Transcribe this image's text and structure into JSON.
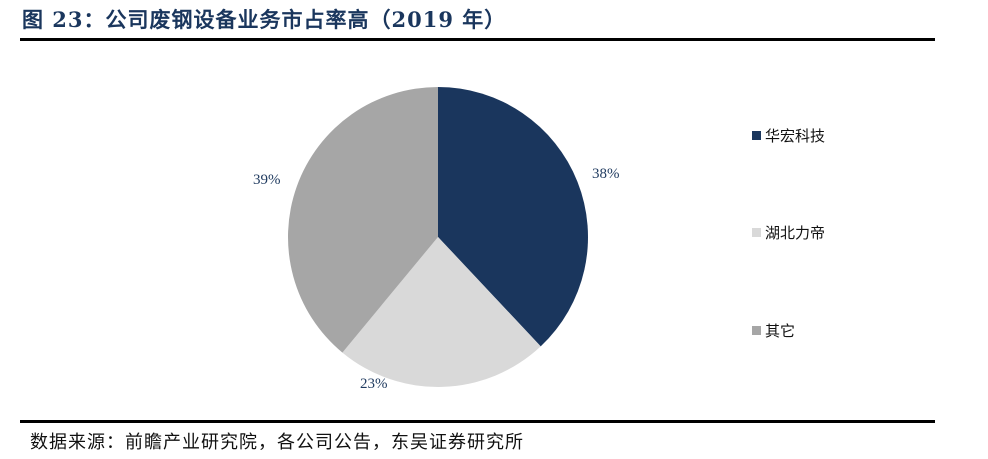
{
  "header": {
    "title": "图 23：公司废钢设备业务市占率高（2019 年）"
  },
  "footer": {
    "source": "数据来源：前瞻产业研究院，各公司公告，东吴证券研究所"
  },
  "legend": {
    "items": [
      {
        "label": "华宏科技",
        "color": "#1a365d"
      },
      {
        "label": "湖北力帝",
        "color": "#d9d9d9"
      },
      {
        "label": "其它",
        "color": "#a6a6a6"
      }
    ]
  },
  "labels": {
    "s0": "38%",
    "s1": "23%",
    "s2": "39%"
  },
  "chart_data": {
    "type": "pie",
    "title": "公司废钢设备业务市占率高（2019 年）",
    "categories": [
      "华宏科技",
      "湖北力帝",
      "其它"
    ],
    "values": [
      38,
      23,
      39
    ],
    "unit": "%",
    "colors": [
      "#1a365d",
      "#d9d9d9",
      "#a6a6a6"
    ],
    "start_angle": "12 o'clock, clockwise",
    "legend_position": "right"
  }
}
